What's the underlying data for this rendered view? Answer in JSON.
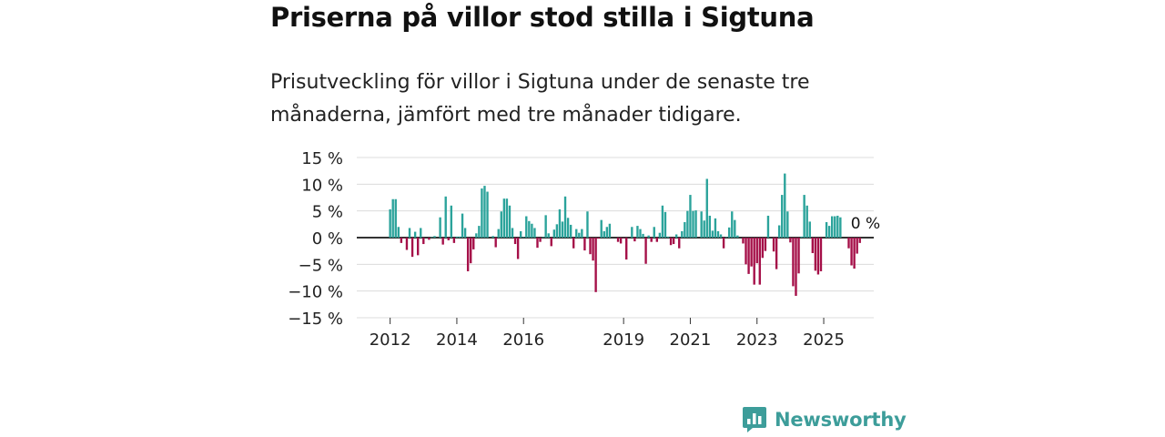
{
  "header": {
    "title": "Priserna på villor stod stilla i Sigtuna",
    "subtitle": "Prisutveckling för villor i Sigtuna under de senaste tre månaderna, jämfört med tre månader tidigare."
  },
  "brand": {
    "name": "Newsworthy",
    "color": "#3d9d9a"
  },
  "chart_data": {
    "type": "bar",
    "title": "Priserna på villor stod stilla i Sigtuna",
    "xlabel": "",
    "ylabel": "",
    "ylim": [
      -15,
      15
    ],
    "y_ticks": [
      15,
      10,
      5,
      0,
      -5,
      -10,
      -15
    ],
    "y_tick_labels": [
      "15 %",
      "10 %",
      "5 %",
      "0 %",
      "−5 %",
      "−10 %",
      "−15 %"
    ],
    "x_range": [
      2011.0,
      2026.5
    ],
    "x_ticks": [
      2012,
      2014,
      2016,
      2019,
      2021,
      2023,
      2025
    ],
    "x_tick_labels": [
      "2012",
      "2014",
      "2016",
      "2019",
      "2021",
      "2023",
      "2025"
    ],
    "grid": true,
    "positive_color": "#2ba39b",
    "negative_color": "#a50f48",
    "last_value_label": "0 %",
    "series": [
      {
        "name": "Prisutveckling",
        "start": 2012.0,
        "step_months": 1,
        "values": [
          5.3,
          7.2,
          7.2,
          2.0,
          -1.0,
          -0.1,
          -2.3,
          1.8,
          -3.6,
          1.1,
          -3.3,
          1.8,
          -1.2,
          0.0,
          -0.4,
          0.1,
          0.3,
          0.0,
          3.8,
          -1.3,
          7.7,
          -0.5,
          6.0,
          -1.0,
          0.2,
          0.2,
          4.5,
          1.8,
          -6.3,
          -4.8,
          -2.2,
          0.8,
          2.2,
          9.2,
          9.7,
          8.6,
          0.0,
          0.3,
          -1.8,
          1.6,
          4.9,
          7.3,
          7.3,
          6.0,
          1.8,
          -1.2,
          -4.0,
          1.2,
          0.1,
          4.0,
          3.1,
          2.6,
          1.8,
          -1.9,
          -0.8,
          0.1,
          4.2,
          0.8,
          -1.6,
          1.5,
          2.5,
          5.3,
          3.0,
          7.7,
          3.7,
          2.4,
          -2.0,
          1.6,
          0.9,
          1.6,
          -2.4,
          4.9,
          -3.1,
          -4.3,
          -10.2,
          -0.2,
          3.3,
          1.2,
          2.0,
          2.6,
          0.0,
          0.0,
          -0.8,
          -1.1,
          -0.1,
          -4.1,
          0.0,
          2.0,
          -0.7,
          2.2,
          1.6,
          0.7,
          -4.9,
          0.4,
          -0.8,
          2.0,
          -0.8,
          0.9,
          6.0,
          4.8,
          0.2,
          -1.4,
          -1.2,
          0.6,
          -2.0,
          1.2,
          2.9,
          5.0,
          8.0,
          5.0,
          5.1,
          0.0,
          4.9,
          3.2,
          11.0,
          4.1,
          1.3,
          3.6,
          1.2,
          0.6,
          -2.0,
          0.1,
          1.9,
          4.9,
          3.3,
          0.4,
          0.0,
          -1.1,
          -5.0,
          -6.8,
          -5.4,
          -8.8,
          -4.8,
          -8.8,
          -3.8,
          -2.5,
          4.1,
          0.0,
          -2.6,
          -5.9,
          2.3,
          8.0,
          12.0,
          4.9,
          -0.9,
          -9.1,
          -10.9,
          -6.7,
          0.2,
          8.0,
          6.0,
          3.0,
          -2.9,
          -6.2,
          -6.9,
          -6.3,
          0.0,
          2.9,
          2.2,
          4.0,
          4.0,
          4.1,
          3.8,
          0.0,
          0.0,
          -2.0,
          -5.2,
          -5.8,
          -3.0,
          -1.0,
          0.0
        ]
      }
    ]
  }
}
